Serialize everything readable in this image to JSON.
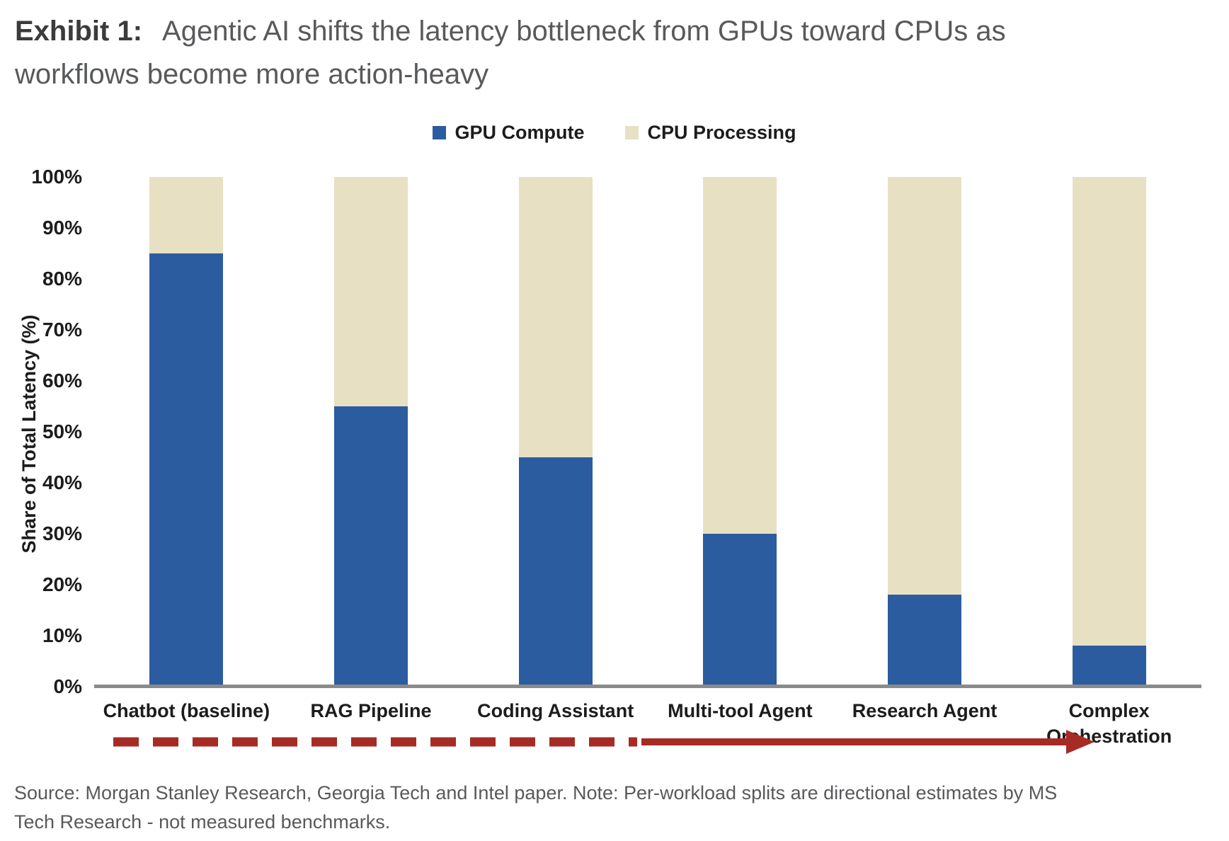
{
  "header": {
    "exhibit_label": "Exhibit 1:",
    "title": "Agentic AI shifts the latency bottleneck from GPUs toward CPUs as workflows become more action-heavy"
  },
  "chart_data": {
    "type": "bar",
    "stacked": true,
    "title": "Exhibit 1: Agentic AI shifts the latency bottleneck from GPUs toward CPUs as workflows become more action-heavy",
    "categories": [
      "Chatbot (baseline)",
      "RAG Pipeline",
      "Coding Assistant",
      "Multi-tool Agent",
      "Research Agent",
      "Complex Orchestration"
    ],
    "series": [
      {
        "name": "GPU Compute",
        "color": "#2B5CA0",
        "values": [
          85,
          55,
          45,
          30,
          18,
          8
        ]
      },
      {
        "name": "CPU Processing",
        "color": "#E8E0C3",
        "values": [
          15,
          45,
          55,
          70,
          82,
          92
        ]
      }
    ],
    "ylabel": "Share of Total Latency (%)",
    "xlabel": "",
    "ylim": [
      0,
      100
    ],
    "ytick_labels_top_to_bottom": [
      "100%",
      "90%",
      "80%",
      "70%",
      "60%",
      "50%",
      "40%",
      "30%",
      "20%",
      "10%",
      "0%"
    ],
    "grid": false,
    "legend_position": "top-center",
    "annotation": {
      "description": "dashed-to-solid arrow left to right under category labels",
      "arrow_color": "#A62B25"
    }
  },
  "footer": {
    "source_note": "Source: Morgan Stanley Research, Georgia Tech and Intel paper. Note: Per-workload splits are directional estimates by MS Tech Research - not measured benchmarks."
  }
}
